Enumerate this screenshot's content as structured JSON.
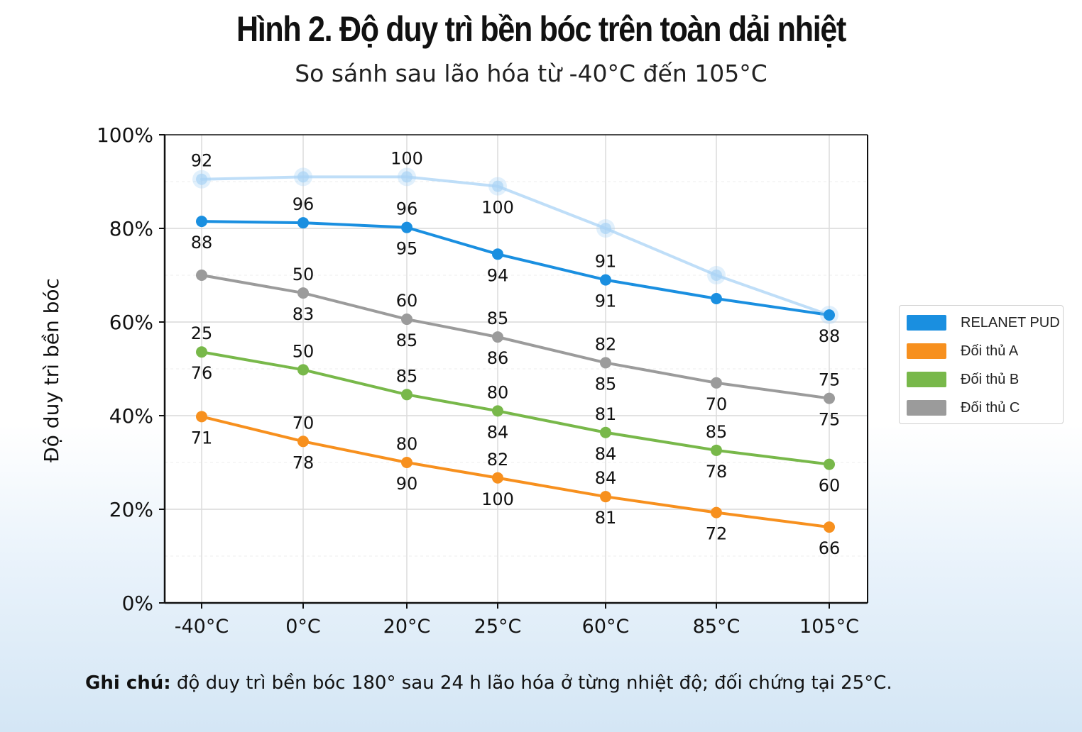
{
  "title": "Hình 2. Độ duy trì bền bóc trên toàn dải nhiệt",
  "subtitle": "So sánh sau lão hóa từ -40°C đến 105°C",
  "note": {
    "label": "Ghi chú:",
    "text": " độ duy trì bền bóc 180° sau 24 h lão hóa ở từng nhiệt độ; đối chứng tại 25°C."
  },
  "chart_data": {
    "type": "line",
    "ylabel": "Độ duy trì bền bóc",
    "ylim": [
      0,
      100
    ],
    "ytick_labels": [
      "0%",
      "20%",
      "40%",
      "60%",
      "80%",
      "100%"
    ],
    "categories": [
      "-40°C",
      "0°C",
      "20°C",
      "25°C",
      "60°C",
      "85°C",
      "105°C"
    ],
    "grid": true,
    "legend_position": "right",
    "series": [
      {
        "name": "RELANET PUD",
        "color": "#1a8fe0",
        "values": [
          81.5,
          81.2,
          80.2,
          74.5,
          69,
          65,
          61.5
        ],
        "labels_above": [
          "",
          "96",
          "96",
          "",
          "91",
          "",
          ""
        ],
        "labels_below": [
          "88",
          "",
          "95",
          "94",
          "91",
          "",
          "88"
        ]
      },
      {
        "name": "Đối thủ A",
        "color": "#f7901e",
        "values": [
          39.8,
          34.5,
          30,
          26.7,
          22.7,
          19.3,
          16.2
        ],
        "labels_above": [
          "",
          "70",
          "80",
          "82",
          "84",
          "",
          ""
        ],
        "labels_below": [
          "71",
          "78",
          "90",
          "100",
          "81",
          "72",
          "66"
        ]
      },
      {
        "name": "Đối thủ B",
        "color": "#78b84a",
        "values": [
          53.6,
          49.8,
          44.5,
          41,
          36.4,
          32.6,
          29.6
        ],
        "labels_above": [
          "25",
          "50",
          "85",
          "80",
          "81",
          "85",
          ""
        ],
        "labels_below": [
          "76",
          "",
          "",
          "84",
          "84",
          "78",
          "60"
        ]
      },
      {
        "name": "Đối thủ C",
        "color": "#9b9b9b",
        "values": [
          70,
          66.2,
          60.6,
          56.8,
          51.3,
          47,
          43.7
        ],
        "labels_above": [
          "",
          "50",
          "60",
          "85",
          "82",
          "",
          "75"
        ],
        "labels_below": [
          "",
          "83",
          "85",
          "86",
          "85",
          "70",
          "75"
        ]
      },
      {
        "name": "",
        "faded": true,
        "color": "#a9d3f5",
        "values": [
          90.5,
          91,
          91,
          89,
          80,
          70,
          61.5
        ],
        "labels_above": [
          "92",
          "",
          "100",
          "",
          "",
          "",
          ""
        ],
        "labels_below": [
          "",
          "",
          "",
          "100",
          "",
          "",
          ""
        ]
      }
    ]
  }
}
